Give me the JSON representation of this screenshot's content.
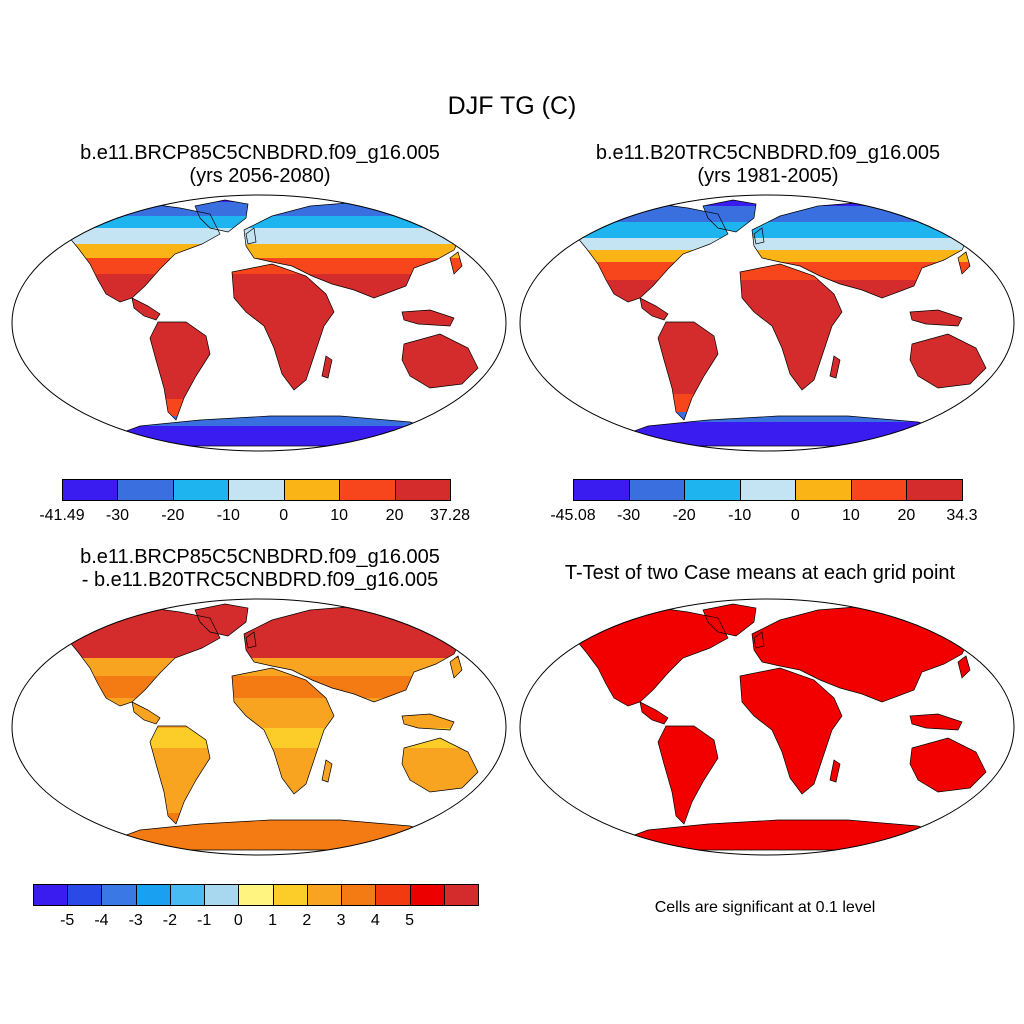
{
  "title": "DJF TG (C)",
  "panels": [
    {
      "id": "p1",
      "title_line1": "b.e11.BRCP85C5CNBDRD.f09_g16.005",
      "title_line2": "(yrs 2056-2080)",
      "colorbar": {
        "colors": [
          "#3a1cf0",
          "#3a6fe0",
          "#1eb4f0",
          "#c4e4f4",
          "#fbb416",
          "#f7461c",
          "#d42c2c"
        ],
        "labels": [
          "-41.49",
          "-30",
          "-20",
          "-10",
          "0",
          "10",
          "20",
          "37.28"
        ]
      }
    },
    {
      "id": "p2",
      "title_line1": "b.e11.B20TRC5CNBDRD.f09_g16.005",
      "title_line2": "(yrs 1981-2005)",
      "colorbar": {
        "colors": [
          "#3a1cf0",
          "#3a6fe0",
          "#1eb4f0",
          "#c4e4f4",
          "#fbb416",
          "#f7461c",
          "#d42c2c"
        ],
        "labels": [
          "-45.08",
          "-30",
          "-20",
          "-10",
          "0",
          "10",
          "20",
          "34.3"
        ]
      }
    },
    {
      "id": "p3",
      "title_line1": "b.e11.BRCP85C5CNBDRD.f09_g16.005",
      "title_line2": "- b.e11.B20TRC5CNBDRD.f09_g16.005",
      "colorbar": {
        "colors": [
          "#3a1cf0",
          "#2a4ae8",
          "#3a78e6",
          "#1aa0f0",
          "#48bcf2",
          "#a8d8f0",
          "#fff480",
          "#fccc28",
          "#f8a420",
          "#f47a14",
          "#f23a10",
          "#ec0000",
          "#d42c2c"
        ],
        "labels": [
          "-5",
          "-4",
          "-3",
          "-2",
          "-1",
          "0",
          "1",
          "2",
          "3",
          "4",
          "5"
        ]
      }
    },
    {
      "id": "p4",
      "title": "T-Test of two Case means at each grid point",
      "note": "Cells are significant at 0.1 level"
    }
  ]
}
